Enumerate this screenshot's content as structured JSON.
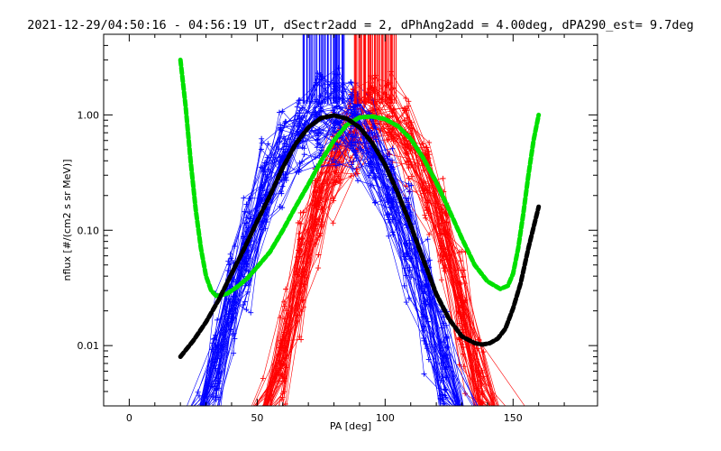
{
  "chart_data": {
    "type": "line",
    "title": "2021-12-29/04:50:16 - 04:56:19 UT, dSectr2add = 2, dPhAng2add = 4.00deg, dPA290_est=   9.7deg",
    "xlabel": "PA [deg]",
    "ylabel": "nflux [#/(cm2 s sr MeV)]",
    "xlim": [
      -10,
      183
    ],
    "ylim": [
      0.003,
      5
    ],
    "yscale": "log",
    "grid": false,
    "x_ticks": [
      {
        "value": 0,
        "label": "0"
      },
      {
        "value": 50,
        "label": "50"
      },
      {
        "value": 100,
        "label": "100"
      },
      {
        "value": 150,
        "label": "150"
      }
    ],
    "y_ticks": [
      {
        "value": 0.01,
        "label": "0.01"
      },
      {
        "value": 0.1,
        "label": "0.10"
      },
      {
        "value": 1,
        "label": "1.00"
      }
    ],
    "colors": {
      "blue": "#0000ff",
      "red": "#ff0000",
      "green": "#00e000",
      "black": "#000000"
    },
    "vertical_markers": {
      "blue": {
        "x_range": [
          68,
          84
        ],
        "y_bottom": 1.25,
        "count": 30
      },
      "red": {
        "x_range": [
          88,
          104
        ],
        "y_bottom": 1.25,
        "count": 32
      }
    },
    "series": [
      {
        "color": "green",
        "style": "thick-dashed",
        "x": [
          20,
          22,
          24,
          26,
          28,
          30,
          32,
          34,
          38,
          42,
          46,
          50,
          55,
          60,
          65,
          70,
          75,
          80,
          85,
          90,
          95,
          100,
          105,
          110,
          115,
          120,
          125,
          130,
          135,
          140,
          145,
          148,
          150,
          152,
          154,
          156,
          158,
          160
        ],
        "y": [
          3.0,
          1.2,
          0.4,
          0.15,
          0.07,
          0.04,
          0.03,
          0.027,
          0.028,
          0.032,
          0.038,
          0.048,
          0.065,
          0.1,
          0.16,
          0.25,
          0.4,
          0.6,
          0.82,
          0.95,
          0.97,
          0.92,
          0.8,
          0.62,
          0.42,
          0.26,
          0.15,
          0.085,
          0.05,
          0.036,
          0.031,
          0.033,
          0.042,
          0.07,
          0.14,
          0.3,
          0.6,
          1.0
        ]
      },
      {
        "color": "black",
        "style": "thick-dashed",
        "x": [
          20,
          25,
          30,
          35,
          40,
          45,
          50,
          55,
          60,
          65,
          70,
          75,
          80,
          85,
          90,
          95,
          100,
          105,
          110,
          115,
          120,
          125,
          130,
          135,
          138,
          141,
          144,
          147,
          150,
          153,
          156,
          160
        ],
        "y": [
          0.008,
          0.011,
          0.016,
          0.025,
          0.042,
          0.07,
          0.12,
          0.2,
          0.35,
          0.56,
          0.78,
          0.94,
          0.99,
          0.93,
          0.78,
          0.57,
          0.37,
          0.21,
          0.11,
          0.055,
          0.028,
          0.017,
          0.012,
          0.0105,
          0.0102,
          0.0105,
          0.0115,
          0.014,
          0.021,
          0.035,
          0.07,
          0.16
        ]
      }
    ]
  }
}
